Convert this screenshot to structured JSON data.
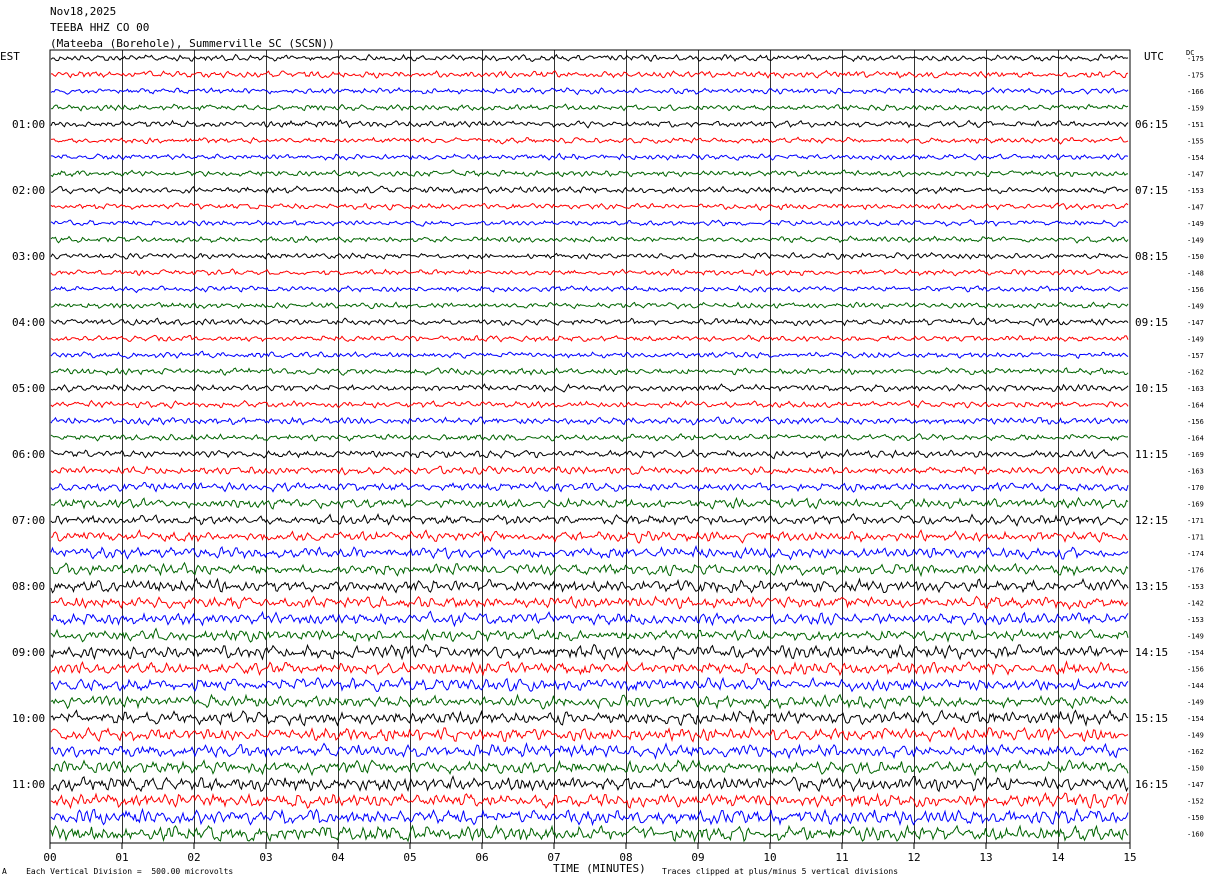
{
  "header": {
    "date": "Nov18,2025",
    "station": "TEEBA HHZ CO 00",
    "location": "(Mateeba (Borehole), Summerville SC (SCSN))"
  },
  "left_tz": "EST",
  "right_tz": "UTC",
  "dc_label": "DC",
  "footer": {
    "scale_note": "Each Vertical Division =  500.00 microvolts",
    "clip_note": "Traces clipped at plus/minus 5 vertical divisions",
    "mark": "A"
  },
  "colors": {
    "trace_cycle": [
      "#000000",
      "#ff0000",
      "#0000ff",
      "#006400"
    ],
    "grid": "#000000",
    "background": "#ffffff"
  },
  "chart_data": {
    "type": "line",
    "xlabel": "TIME (MINUTES)",
    "x_ticks": [
      "00",
      "01",
      "02",
      "03",
      "04",
      "05",
      "06",
      "07",
      "08",
      "09",
      "10",
      "11",
      "12",
      "13",
      "14",
      "15"
    ],
    "xlim": [
      0,
      15
    ],
    "hour_labels_left": [
      "01:00",
      "02:00",
      "03:00",
      "04:00",
      "05:00",
      "06:00",
      "07:00",
      "08:00",
      "09:00",
      "10:00",
      "11:00"
    ],
    "hour_labels_right": [
      "06:15",
      "07:15",
      "08:15",
      "09:15",
      "10:15",
      "11:15",
      "12:15",
      "13:15",
      "14:15",
      "15:15",
      "16:15"
    ],
    "hour_label_rows": [
      4,
      8,
      12,
      16,
      20,
      24,
      28,
      32,
      36,
      40,
      44
    ],
    "trace_count": 48,
    "dc_offsets": [
      -175,
      -175,
      -166,
      -159,
      -151,
      -155,
      -154,
      -147,
      -153,
      -147,
      -149,
      -149,
      -150,
      -148,
      -156,
      -149,
      -147,
      -149,
      -157,
      -162,
      -163,
      -164,
      -156,
      -164,
      -169,
      -163,
      -170,
      -169,
      -171,
      -171,
      -174,
      -176,
      -153,
      -142,
      -153,
      -149,
      -154,
      -156,
      -144,
      -149,
      -154,
      -149,
      -162,
      -150,
      -147,
      -152,
      -150,
      -160
    ],
    "activity_level": [
      1.0,
      1.0,
      0.9,
      0.9,
      1.0,
      0.9,
      0.9,
      0.9,
      1.0,
      0.9,
      0.9,
      0.9,
      0.9,
      0.9,
      0.9,
      0.9,
      1.0,
      0.9,
      0.9,
      1.0,
      1.1,
      1.0,
      1.1,
      1.0,
      1.2,
      1.2,
      1.3,
      1.5,
      1.5,
      1.6,
      1.7,
      1.7,
      1.9,
      1.8,
      1.8,
      1.8,
      2.0,
      1.9,
      1.9,
      1.9,
      2.1,
      2.0,
      2.0,
      2.0,
      2.2,
      2.2,
      2.3,
      2.4
    ]
  }
}
